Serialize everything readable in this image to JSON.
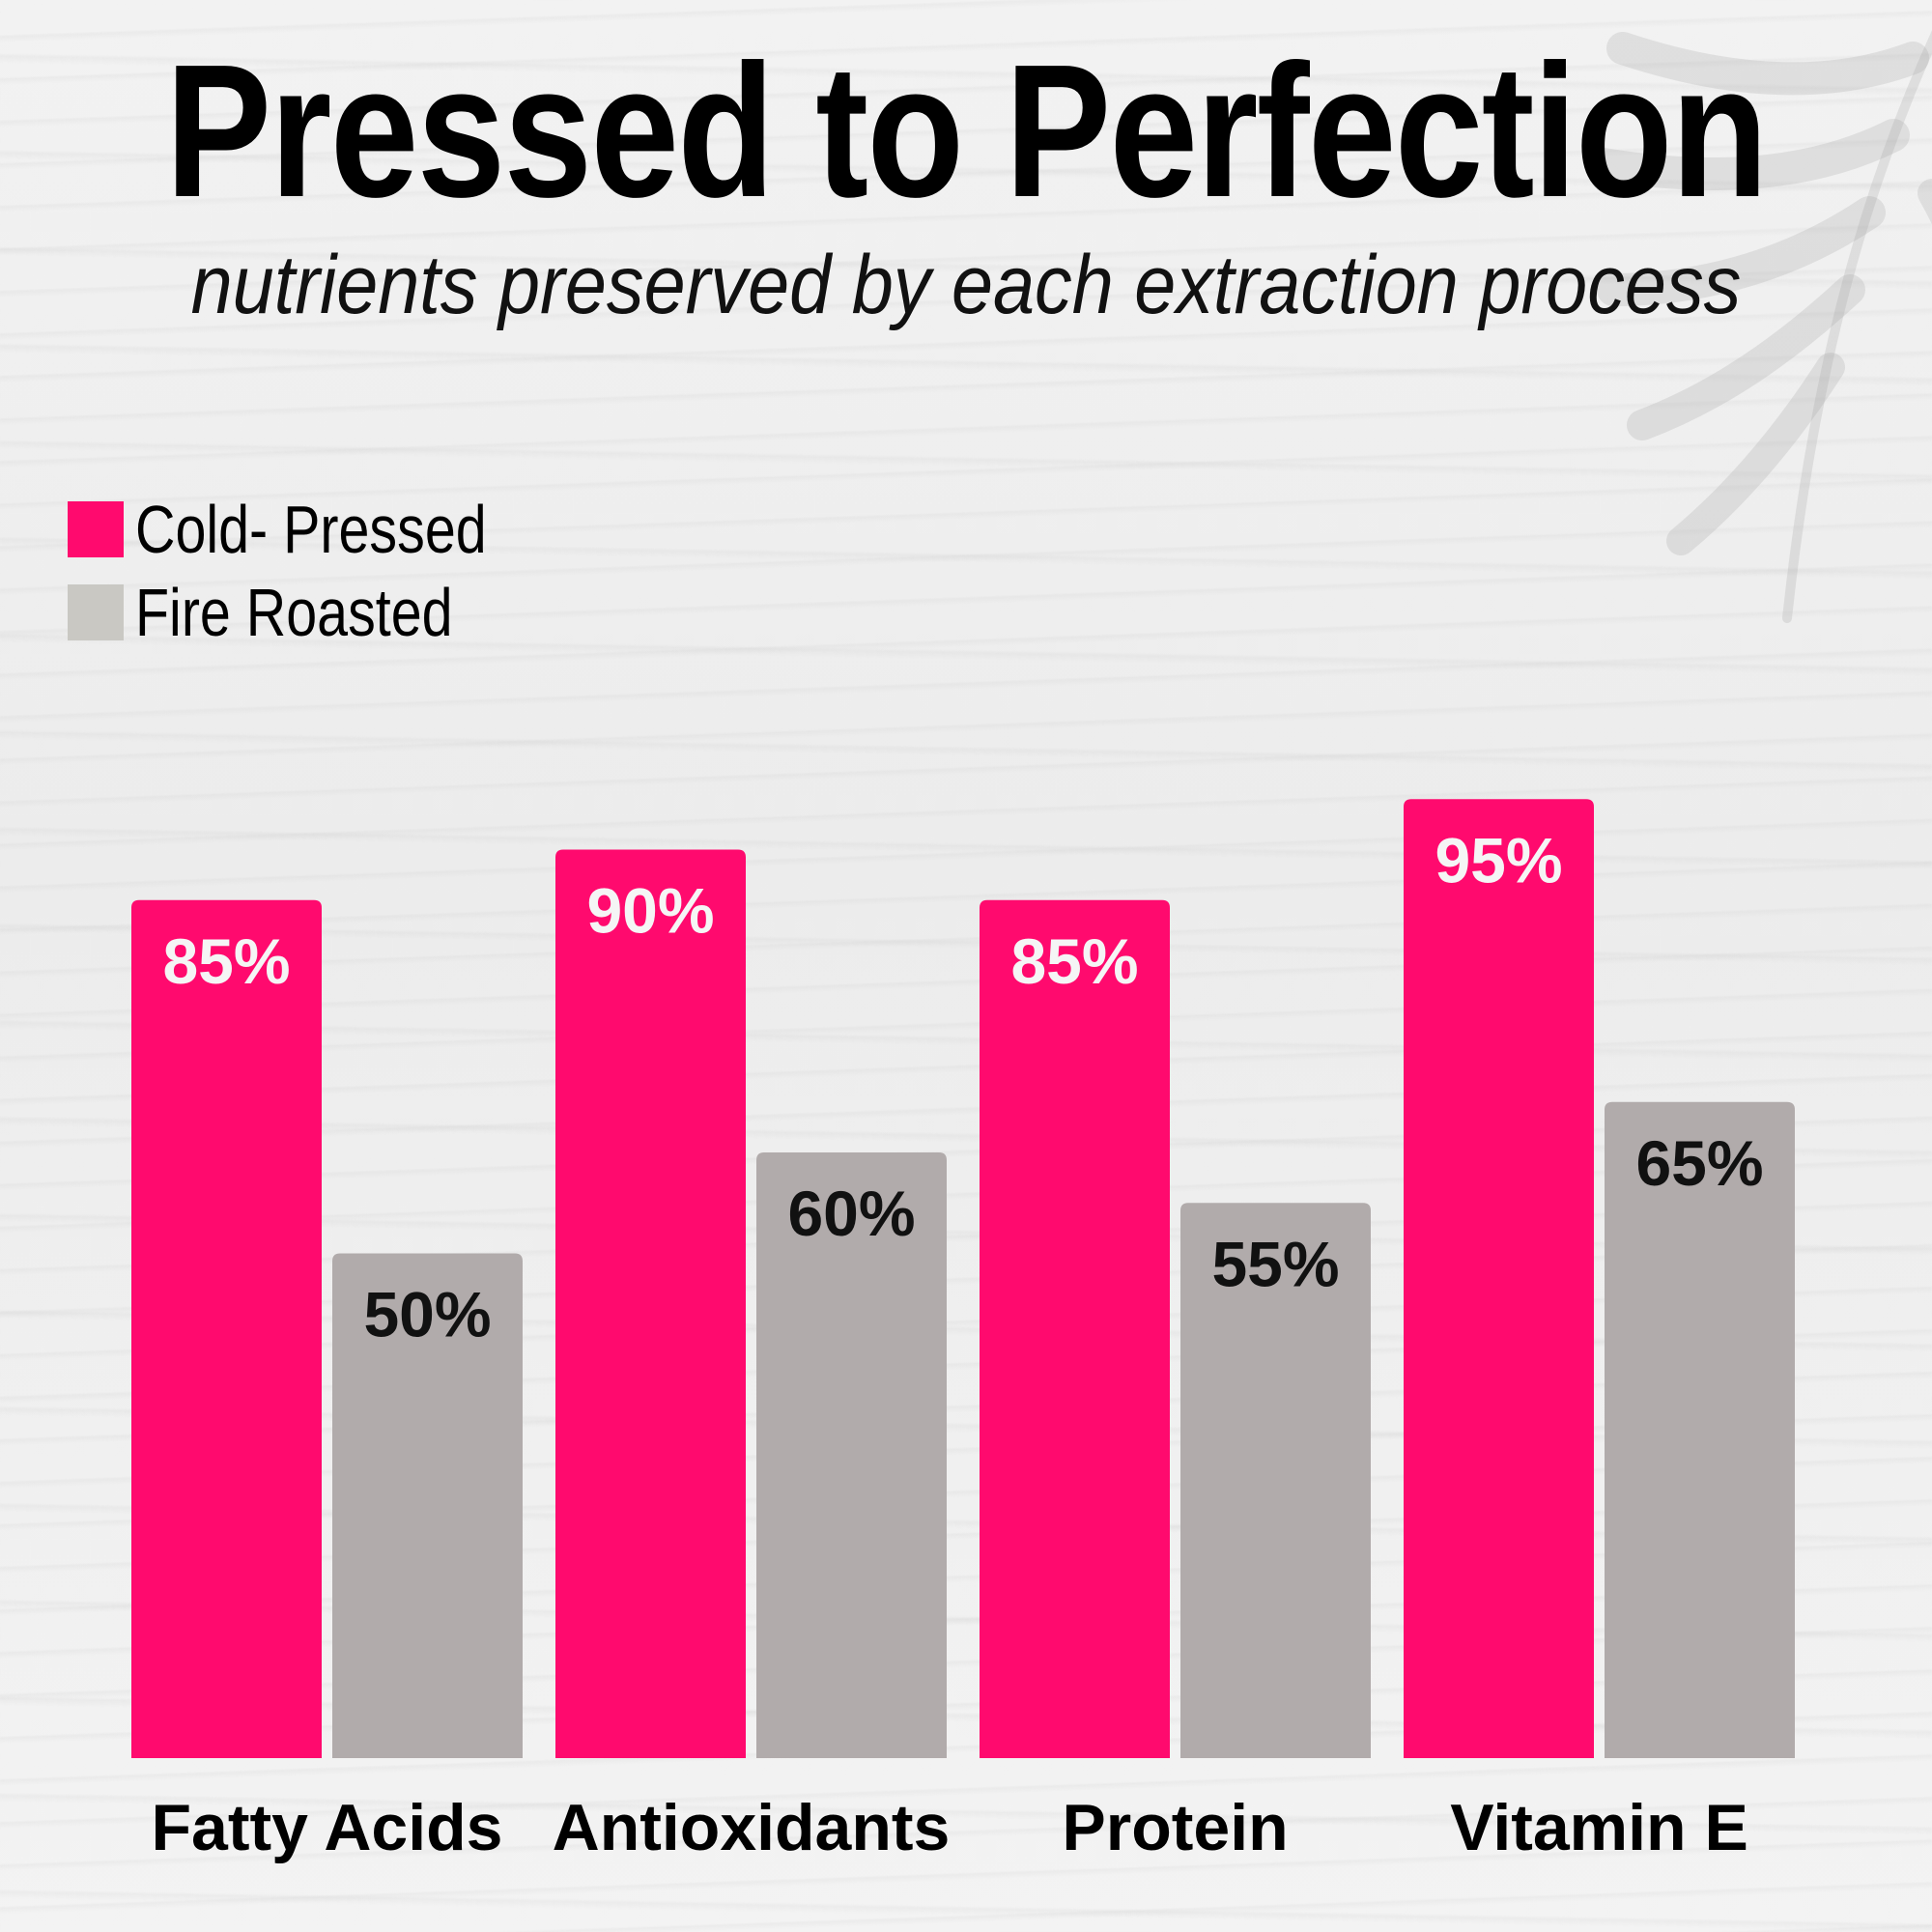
{
  "colors": {
    "cold_pressed": "#ff0a6e",
    "fire_roasted": "#b1abab",
    "label_light": "#f5f5f5",
    "label_dark": "#111111"
  },
  "header": {
    "title": "Pressed to Perfection",
    "subtitle": "nutrients preserved by each extraction process"
  },
  "legend": [
    {
      "label": "Cold- Pressed",
      "color": "#ff0a6e"
    },
    {
      "label": "Fire Roasted",
      "color": "#c9c8c3"
    }
  ],
  "chart_data": {
    "type": "bar",
    "title": "Pressed to Perfection",
    "subtitle": "nutrients preserved by each extraction process",
    "categories": [
      "Fatty Acids",
      "Antioxidants",
      "Protein",
      "Vitamin E"
    ],
    "series": [
      {
        "name": "Cold- Pressed",
        "values": [
          85,
          90,
          85,
          95
        ],
        "labels": [
          "85%",
          "90%",
          "85%",
          "95%"
        ]
      },
      {
        "name": "Fire Roasted",
        "values": [
          50,
          60,
          55,
          65
        ],
        "labels": [
          "50%",
          "60%",
          "55%",
          "65%"
        ]
      }
    ],
    "xlabel": "",
    "ylabel": "",
    "ylim": [
      0,
      100
    ],
    "grid": false,
    "legend_position": "top-left"
  }
}
